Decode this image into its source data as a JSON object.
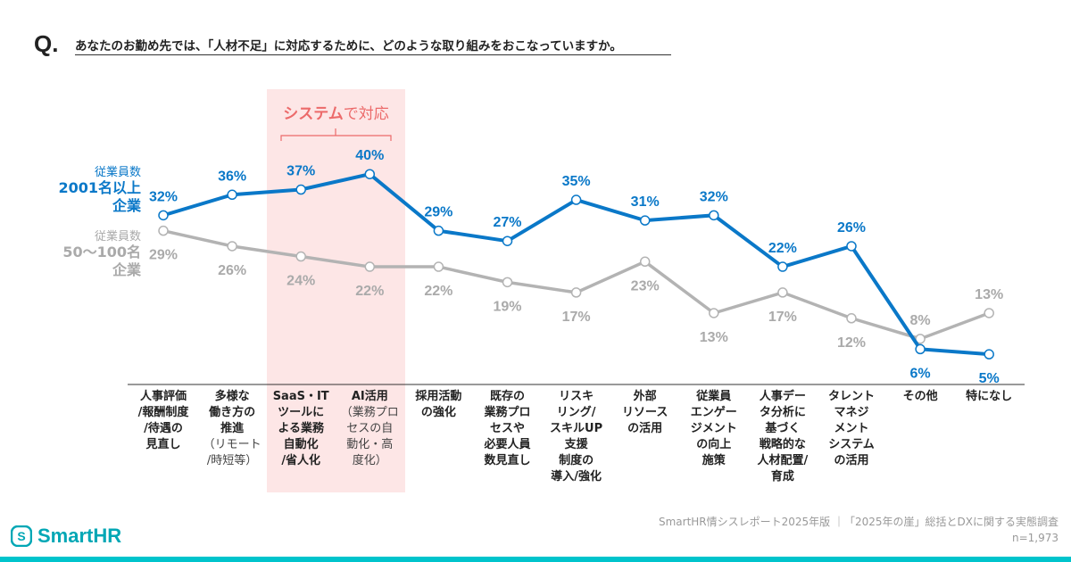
{
  "question": {
    "mark": "Q.",
    "text": "あなたのお勤め先では、「人材不足」に対応するために、どのような取り組みをおこなっていますか。"
  },
  "highlight": {
    "title_strong": "システム",
    "title_rest": "で対応"
  },
  "colors": {
    "large": "#0a78c8",
    "small": "#b3b3b3",
    "highlight": "#fde6e6",
    "accent": "#00c4cc"
  },
  "chart_data": {
    "type": "line",
    "categories": [
      {
        "main": "人事評価\n/報酬制度\n/待遇の\n見直し",
        "sub": ""
      },
      {
        "main": "多様な\n働き方の\n推進",
        "sub": "（リモート\n/時短等）"
      },
      {
        "main": "SaaS・IT\nツールに\nよる業務\n自動化\n/省人化",
        "sub": ""
      },
      {
        "main": "AI活用",
        "sub": "（業務プロ\nセスの自\n動化・高\n度化）"
      },
      {
        "main": "採用活動\nの強化",
        "sub": ""
      },
      {
        "main": "既存の\n業務プロ\nセスや\n必要人員\n数見直し",
        "sub": ""
      },
      {
        "main": "リスキ\nリング/\nスキルUP\n支援\n制度の\n導入/強化",
        "sub": ""
      },
      {
        "main": "外部\nリソース\nの活用",
        "sub": ""
      },
      {
        "main": "従業員\nエンゲー\nジメント\nの向上\n施策",
        "sub": ""
      },
      {
        "main": "人事デー\nタ分析に\n基づく\n戦略的な\n人材配置/\n育成",
        "sub": ""
      },
      {
        "main": "タレント\nマネジ\nメント\nシステム\nの活用",
        "sub": ""
      },
      {
        "main": "その他",
        "sub": ""
      },
      {
        "main": "特になし",
        "sub": ""
      }
    ],
    "series": [
      {
        "name": "従業員数 2001名以上 企業",
        "label_top": "従業員数",
        "label_main": "2001名以上\n企業",
        "values": [
          32,
          36,
          37,
          40,
          29,
          27,
          35,
          31,
          32,
          22,
          26,
          6,
          5
        ]
      },
      {
        "name": "従業員数 50〜100名 企業",
        "label_top": "従業員数",
        "label_main": "50〜100名\n企業",
        "values": [
          29,
          26,
          24,
          22,
          22,
          19,
          17,
          23,
          13,
          17,
          12,
          8,
          13
        ]
      }
    ],
    "unit": "%",
    "ylim": [
      0,
      40
    ],
    "grid": false
  },
  "footer": {
    "source": "SmartHR情シスレポート2025年版 ｜「2025年の崖」総括とDXに関する実態調査",
    "n": "n=1,973"
  },
  "logo": {
    "text": "SmartHR"
  }
}
